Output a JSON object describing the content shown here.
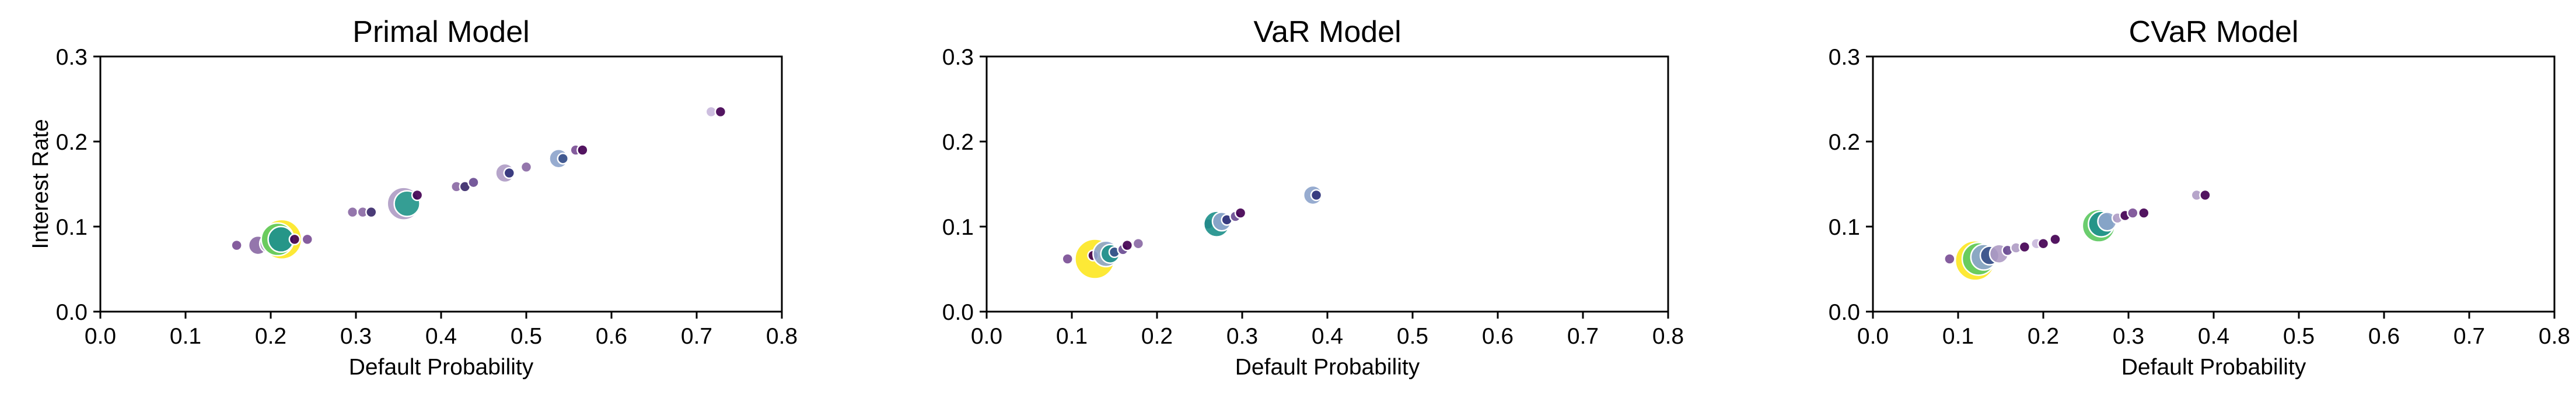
{
  "chart_data": [
    {
      "type": "scatter",
      "title": "Primal Model",
      "xlabel": "Default Probability",
      "ylabel": "Interest Rate",
      "xlim": [
        0,
        0.8
      ],
      "ylim": [
        0,
        0.3
      ],
      "xticks": [
        "0.0",
        "0.1",
        "0.2",
        "0.3",
        "0.4",
        "0.5",
        "0.6",
        "0.7",
        "0.8"
      ],
      "yticks": [
        "0.0",
        "0.1",
        "0.2",
        "0.3"
      ],
      "grid": false,
      "points": [
        {
          "x": 0.16,
          "y": 0.078,
          "size": 1,
          "color": "#7b4f96"
        },
        {
          "x": 0.185,
          "y": 0.078,
          "size": 2,
          "color": "#8b6aa5"
        },
        {
          "x": 0.198,
          "y": 0.08,
          "size": 2,
          "color": "#b09dc6"
        },
        {
          "x": 0.213,
          "y": 0.085,
          "size": 5,
          "color": "#fde725"
        },
        {
          "x": 0.208,
          "y": 0.085,
          "size": 4,
          "color": "#5ec962"
        },
        {
          "x": 0.212,
          "y": 0.085,
          "size": 3,
          "color": "#21918c"
        },
        {
          "x": 0.228,
          "y": 0.085,
          "size": 1,
          "color": "#440154"
        },
        {
          "x": 0.243,
          "y": 0.085,
          "size": 1,
          "color": "#7b4f96"
        },
        {
          "x": 0.296,
          "y": 0.117,
          "size": 1,
          "color": "#8b6aa5"
        },
        {
          "x": 0.308,
          "y": 0.117,
          "size": 1,
          "color": "#8b6aa5"
        },
        {
          "x": 0.318,
          "y": 0.117,
          "size": 1,
          "color": "#3b2a6b"
        },
        {
          "x": 0.356,
          "y": 0.127,
          "size": 4,
          "color": "#b09dc6"
        },
        {
          "x": 0.36,
          "y": 0.127,
          "size": 3,
          "color": "#2a9d8f"
        },
        {
          "x": 0.372,
          "y": 0.137,
          "size": 1,
          "color": "#440154"
        },
        {
          "x": 0.418,
          "y": 0.147,
          "size": 1,
          "color": "#8b6aa5"
        },
        {
          "x": 0.428,
          "y": 0.147,
          "size": 1,
          "color": "#3b2a6b"
        },
        {
          "x": 0.438,
          "y": 0.152,
          "size": 1,
          "color": "#6a4c93"
        },
        {
          "x": 0.475,
          "y": 0.163,
          "size": 2,
          "color": "#b09dc6"
        },
        {
          "x": 0.48,
          "y": 0.163,
          "size": 1,
          "color": "#31337a"
        },
        {
          "x": 0.5,
          "y": 0.17,
          "size": 1,
          "color": "#8b6aa5"
        },
        {
          "x": 0.538,
          "y": 0.18,
          "size": 2,
          "color": "#8ea5cc"
        },
        {
          "x": 0.543,
          "y": 0.18,
          "size": 1,
          "color": "#3b528b"
        },
        {
          "x": 0.558,
          "y": 0.19,
          "size": 1,
          "color": "#7b4f96"
        },
        {
          "x": 0.566,
          "y": 0.19,
          "size": 1,
          "color": "#440154"
        },
        {
          "x": 0.717,
          "y": 0.235,
          "size": 1,
          "color": "#c9b8dc"
        },
        {
          "x": 0.728,
          "y": 0.235,
          "size": 1,
          "color": "#440154"
        }
      ]
    },
    {
      "type": "scatter",
      "title": "VaR Model",
      "xlabel": "Default Probability",
      "ylabel": "",
      "xlim": [
        0,
        0.8
      ],
      "ylim": [
        0,
        0.3
      ],
      "xticks": [
        "0.0",
        "0.1",
        "0.2",
        "0.3",
        "0.4",
        "0.5",
        "0.6",
        "0.7",
        "0.8"
      ],
      "yticks": [
        "0.0",
        "0.1",
        "0.2",
        "0.3"
      ],
      "grid": false,
      "points": [
        {
          "x": 0.095,
          "y": 0.062,
          "size": 1,
          "color": "#7b4f96"
        },
        {
          "x": 0.127,
          "y": 0.062,
          "size": 5,
          "color": "#fde725"
        },
        {
          "x": 0.125,
          "y": 0.066,
          "size": 1,
          "color": "#440154"
        },
        {
          "x": 0.14,
          "y": 0.068,
          "size": 3,
          "color": "#8ea5cc"
        },
        {
          "x": 0.145,
          "y": 0.068,
          "size": 2,
          "color": "#21918c"
        },
        {
          "x": 0.15,
          "y": 0.07,
          "size": 1,
          "color": "#3b528b"
        },
        {
          "x": 0.16,
          "y": 0.073,
          "size": 1,
          "color": "#6a4c93"
        },
        {
          "x": 0.165,
          "y": 0.078,
          "size": 1,
          "color": "#440154"
        },
        {
          "x": 0.178,
          "y": 0.08,
          "size": 1,
          "color": "#8b6aa5"
        },
        {
          "x": 0.26,
          "y": 0.103,
          "size": 1,
          "color": "#3b2a6b"
        },
        {
          "x": 0.27,
          "y": 0.103,
          "size": 3,
          "color": "#21918c"
        },
        {
          "x": 0.276,
          "y": 0.106,
          "size": 2,
          "color": "#8ea5cc"
        },
        {
          "x": 0.282,
          "y": 0.108,
          "size": 1,
          "color": "#31337a"
        },
        {
          "x": 0.292,
          "y": 0.112,
          "size": 1,
          "color": "#6a4c93"
        },
        {
          "x": 0.298,
          "y": 0.116,
          "size": 1,
          "color": "#440154"
        },
        {
          "x": 0.383,
          "y": 0.137,
          "size": 2,
          "color": "#8ea5cc"
        },
        {
          "x": 0.387,
          "y": 0.137,
          "size": 1,
          "color": "#31337a"
        }
      ]
    },
    {
      "type": "scatter",
      "title": "CVaR Model",
      "xlabel": "Default Probability",
      "ylabel": "",
      "xlim": [
        0,
        0.8
      ],
      "ylim": [
        0,
        0.3
      ],
      "xticks": [
        "0.0",
        "0.1",
        "0.2",
        "0.3",
        "0.4",
        "0.5",
        "0.6",
        "0.7",
        "0.8"
      ],
      "yticks": [
        "0.0",
        "0.1",
        "0.2",
        "0.3"
      ],
      "grid": false,
      "points": [
        {
          "x": 0.09,
          "y": 0.062,
          "size": 1,
          "color": "#7b4f96"
        },
        {
          "x": 0.12,
          "y": 0.06,
          "size": 5,
          "color": "#fde725"
        },
        {
          "x": 0.124,
          "y": 0.062,
          "size": 4,
          "color": "#5ec962"
        },
        {
          "x": 0.13,
          "y": 0.064,
          "size": 3,
          "color": "#8ea5cc"
        },
        {
          "x": 0.137,
          "y": 0.066,
          "size": 2,
          "color": "#3b528b"
        },
        {
          "x": 0.148,
          "y": 0.068,
          "size": 2,
          "color": "#b09dc6"
        },
        {
          "x": 0.158,
          "y": 0.072,
          "size": 1,
          "color": "#6a4c93"
        },
        {
          "x": 0.168,
          "y": 0.075,
          "size": 1,
          "color": "#b09dc6"
        },
        {
          "x": 0.178,
          "y": 0.076,
          "size": 1,
          "color": "#440154"
        },
        {
          "x": 0.192,
          "y": 0.08,
          "size": 1,
          "color": "#c9b8dc"
        },
        {
          "x": 0.2,
          "y": 0.08,
          "size": 1,
          "color": "#440154"
        },
        {
          "x": 0.214,
          "y": 0.085,
          "size": 1,
          "color": "#440154"
        },
        {
          "x": 0.258,
          "y": 0.103,
          "size": 1,
          "color": "#3b2a6b"
        },
        {
          "x": 0.265,
          "y": 0.101,
          "size": 4,
          "color": "#5ec962"
        },
        {
          "x": 0.268,
          "y": 0.103,
          "size": 3,
          "color": "#21918c"
        },
        {
          "x": 0.275,
          "y": 0.106,
          "size": 2,
          "color": "#8ea5cc"
        },
        {
          "x": 0.287,
          "y": 0.11,
          "size": 1,
          "color": "#b09dc6"
        },
        {
          "x": 0.296,
          "y": 0.113,
          "size": 1,
          "color": "#440154"
        },
        {
          "x": 0.305,
          "y": 0.116,
          "size": 1,
          "color": "#7b4f96"
        },
        {
          "x": 0.318,
          "y": 0.116,
          "size": 1,
          "color": "#440154"
        },
        {
          "x": 0.38,
          "y": 0.137,
          "size": 1,
          "color": "#b09dc6"
        },
        {
          "x": 0.39,
          "y": 0.137,
          "size": 1,
          "color": "#440154"
        }
      ]
    }
  ]
}
